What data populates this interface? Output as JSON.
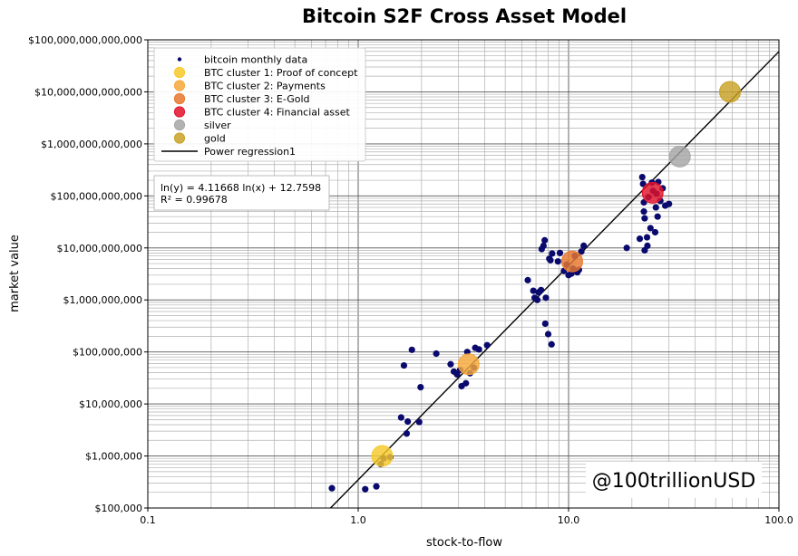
{
  "chart_data": {
    "type": "scatter",
    "title": "Bitcoin S2F Cross Asset Model",
    "xlabel": "stock-to-flow",
    "ylabel": "market value",
    "x_scale": "log",
    "y_scale": "log",
    "xlim": [
      0.1,
      100.0
    ],
    "ylim": [
      100000,
      100000000000000
    ],
    "grid": true,
    "legend_position": "top-left",
    "x_ticks": [
      {
        "value": 0.1,
        "label": "0.1"
      },
      {
        "value": 1.0,
        "label": "1.0"
      },
      {
        "value": 10.0,
        "label": "10.0"
      },
      {
        "value": 100.0,
        "label": "100.0"
      }
    ],
    "y_ticks": [
      {
        "value": 100000,
        "label": "$100,000"
      },
      {
        "value": 1000000,
        "label": "$1,000,000"
      },
      {
        "value": 10000000,
        "label": "$10,000,000"
      },
      {
        "value": 100000000,
        "label": "$100,000,000"
      },
      {
        "value": 1000000000,
        "label": "$1,000,000,000"
      },
      {
        "value": 10000000000,
        "label": "$10,000,000,000"
      },
      {
        "value": 100000000000,
        "label": "$100,000,000,000"
      },
      {
        "value": 1000000000000,
        "label": "$1,000,000,000,000"
      },
      {
        "value": 10000000000000,
        "label": "$10,000,000,000,000"
      },
      {
        "value": 100000000000000,
        "label": "$100,000,000,000,000"
      }
    ],
    "series": [
      {
        "name": "bitcoin monthly data",
        "color": "#0a0a6e",
        "marker": "small-dot",
        "points": [
          [
            0.75,
            240000
          ],
          [
            1.08,
            230000
          ],
          [
            1.22,
            260000
          ],
          [
            1.28,
            700000
          ],
          [
            1.32,
            900000
          ],
          [
            1.42,
            950000
          ],
          [
            1.6,
            5500000
          ],
          [
            1.65,
            55000000
          ],
          [
            1.7,
            2700000
          ],
          [
            1.72,
            4600000
          ],
          [
            1.8,
            110000000
          ],
          [
            1.95,
            4500000
          ],
          [
            1.98,
            21000000
          ],
          [
            2.35,
            93000000
          ],
          [
            2.75,
            58000000
          ],
          [
            2.85,
            42000000
          ],
          [
            2.95,
            37000000
          ],
          [
            3.05,
            45000000
          ],
          [
            3.1,
            22000000
          ],
          [
            3.25,
            25000000
          ],
          [
            3.3,
            100000000
          ],
          [
            3.4,
            39000000
          ],
          [
            3.55,
            50000000
          ],
          [
            3.6,
            120000000
          ],
          [
            3.75,
            112000000
          ],
          [
            4.1,
            135000000
          ],
          [
            6.4,
            2400000000
          ],
          [
            6.8,
            1500000000
          ],
          [
            6.9,
            1100000000
          ],
          [
            7.1,
            1000000000
          ],
          [
            7.2,
            1400000000
          ],
          [
            7.4,
            1550000000
          ],
          [
            7.45,
            9500000000
          ],
          [
            7.6,
            11000000000
          ],
          [
            7.7,
            14000000000
          ],
          [
            7.75,
            350000000
          ],
          [
            7.8,
            1100000000
          ],
          [
            8.0,
            220000000
          ],
          [
            8.1,
            6200000000
          ],
          [
            8.2,
            5800000000
          ],
          [
            8.3,
            140000000
          ],
          [
            8.35,
            7800000000
          ],
          [
            8.9,
            5500000000
          ],
          [
            9.1,
            8000000000
          ],
          [
            9.5,
            3600000000
          ],
          [
            9.8,
            4800000000
          ],
          [
            10.0,
            3000000000
          ],
          [
            10.3,
            3200000000
          ],
          [
            10.5,
            4000000000
          ],
          [
            10.7,
            7000000000
          ],
          [
            11.0,
            3400000000
          ],
          [
            11.2,
            3800000000
          ],
          [
            11.5,
            8500000000
          ],
          [
            11.8,
            11000000000
          ],
          [
            18.9,
            10000000000
          ],
          [
            21.8,
            15000000000
          ],
          [
            22.4,
            230000000000
          ],
          [
            22.6,
            170000000000
          ],
          [
            22.8,
            75000000000
          ],
          [
            22.8,
            50000000000
          ],
          [
            23.0,
            37000000000
          ],
          [
            23.0,
            9000000000
          ],
          [
            23.6,
            16000000000
          ],
          [
            23.7,
            11000000000
          ],
          [
            24.0,
            95000000000
          ],
          [
            24.5,
            24000000000
          ],
          [
            24.9,
            180000000000
          ],
          [
            25.2,
            125000000000
          ],
          [
            25.8,
            20000000000
          ],
          [
            26.0,
            60000000000
          ],
          [
            26.2,
            110000000000
          ],
          [
            26.5,
            40000000000
          ],
          [
            26.7,
            185000000000
          ],
          [
            27.3,
            80000000000
          ],
          [
            28.0,
            140000000000
          ],
          [
            28.8,
            65000000000
          ],
          [
            30.0,
            70000000000
          ]
        ]
      },
      {
        "name": "BTC cluster 1: Proof of concept",
        "color": "#f7c92b",
        "marker": "cluster",
        "points": [
          [
            1.3,
            1000000
          ]
        ]
      },
      {
        "name": "BTC cluster 2: Payments",
        "color": "#f5a83a",
        "marker": "cluster",
        "points": [
          [
            3.35,
            58000000
          ]
        ]
      },
      {
        "name": "BTC cluster 3: E-Gold",
        "color": "#e8782e",
        "marker": "cluster",
        "points": [
          [
            10.4,
            5500000000
          ]
        ]
      },
      {
        "name": "BTC cluster 4: Financial asset",
        "color": "#e2122a",
        "marker": "cluster",
        "points": [
          [
            25.1,
            115000000000
          ]
        ]
      },
      {
        "name": "silver",
        "color": "#a6a6a6",
        "marker": "cluster",
        "points": [
          [
            33.8,
            570000000000
          ]
        ]
      },
      {
        "name": "gold",
        "color": "#c9a227",
        "marker": "cluster",
        "points": [
          [
            58.5,
            10000000000000
          ]
        ]
      }
    ],
    "regression": {
      "name": "Power regression1",
      "color": "#000000",
      "equation": "ln(y) = 4.11668 ln(x) + 12.7598",
      "r_squared": "R² = 0.99678",
      "slope": 4.11668,
      "intercept": 12.7598
    },
    "annotation": "@100trillionUSD"
  }
}
